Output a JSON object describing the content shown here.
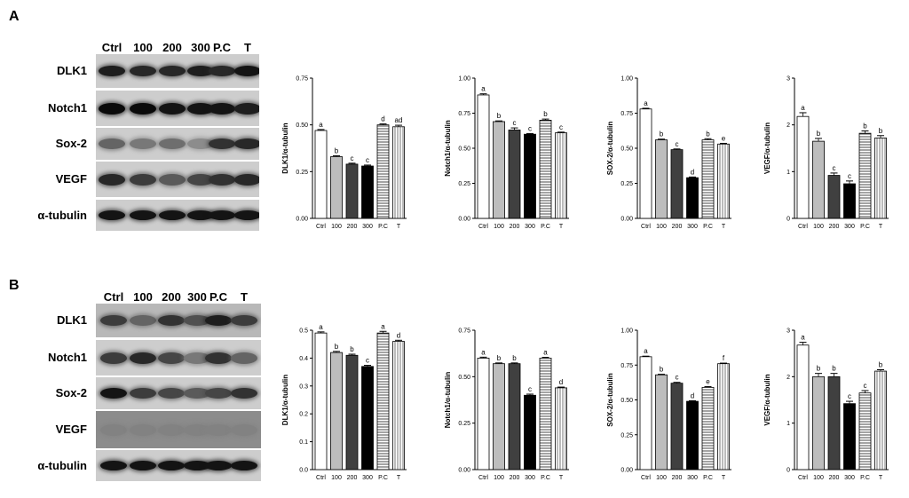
{
  "panels": [
    {
      "letter": "A",
      "blot": {
        "lanes": [
          "Ctrl",
          "100",
          "200",
          "300",
          "P.C",
          "T"
        ],
        "rows": [
          {
            "label": "DLK1",
            "intensity": [
              0.85,
              0.8,
              0.8,
              0.85,
              0.8,
              0.9
            ]
          },
          {
            "label": "Notch1",
            "intensity": [
              0.95,
              0.95,
              0.9,
              0.9,
              0.9,
              0.85
            ]
          },
          {
            "label": "Sox-2",
            "intensity": [
              0.5,
              0.4,
              0.45,
              0.3,
              0.75,
              0.8
            ]
          },
          {
            "label": "VEGF",
            "intensity": [
              0.8,
              0.7,
              0.55,
              0.65,
              0.75,
              0.8
            ]
          },
          {
            "label": "α-tubulin",
            "intensity": [
              0.9,
              0.9,
              0.9,
              0.9,
              0.9,
              0.9
            ]
          }
        ]
      }
    },
    {
      "letter": "B",
      "blot": {
        "lanes": [
          "Ctrl",
          "100",
          "200",
          "300",
          "P.C",
          "T"
        ],
        "rows": [
          {
            "label": "DLK1",
            "intensity": [
              0.7,
              0.5,
              0.75,
              0.6,
              0.85,
              0.7
            ]
          },
          {
            "label": "Notch1",
            "intensity": [
              0.7,
              0.8,
              0.65,
              0.4,
              0.75,
              0.5
            ]
          },
          {
            "label": "Sox-2",
            "intensity": [
              0.9,
              0.7,
              0.65,
              0.55,
              0.65,
              0.75
            ]
          },
          {
            "label": "VEGF",
            "intensity": [
              0.35,
              0.35,
              0.35,
              0.35,
              0.35,
              0.35
            ]
          },
          {
            "label": "α-tubulin",
            "intensity": [
              0.9,
              0.9,
              0.9,
              0.9,
              0.9,
              0.9
            ]
          }
        ]
      }
    }
  ],
  "chart_data": [
    {
      "type": "bar",
      "panel": "A",
      "categories": [
        "Ctrl",
        "100",
        "200",
        "300",
        "P.C",
        "T"
      ],
      "values": [
        0.47,
        0.33,
        0.29,
        0.28,
        0.5,
        0.49
      ],
      "errors": [
        0.005,
        0.005,
        0.005,
        0.005,
        0.005,
        0.008
      ],
      "letters": [
        "a",
        "b",
        "c",
        "c",
        "d",
        "ad"
      ],
      "ylabel": "DLK1/α-tubulin",
      "ylim": [
        0,
        0.75
      ],
      "yticks": [
        "0.00",
        "0.25",
        "0.50",
        "0.75"
      ]
    },
    {
      "type": "bar",
      "panel": "A",
      "categories": [
        "Ctrl",
        "100",
        "200",
        "300",
        "P.C",
        "T"
      ],
      "values": [
        0.88,
        0.69,
        0.63,
        0.6,
        0.7,
        0.61
      ],
      "errors": [
        0.008,
        0.005,
        0.015,
        0.005,
        0.008,
        0.005
      ],
      "letters": [
        "a",
        "b",
        "c",
        "c",
        "b",
        "c"
      ],
      "ylabel": "Notch1/α-tubulin",
      "ylim": [
        0,
        1.0
      ],
      "yticks": [
        "0.00",
        "0.25",
        "0.50",
        "0.75",
        "1.00"
      ]
    },
    {
      "type": "bar",
      "panel": "A",
      "categories": [
        "Ctrl",
        "100",
        "200",
        "300",
        "P.C",
        "T"
      ],
      "values": [
        0.78,
        0.56,
        0.49,
        0.29,
        0.56,
        0.53
      ],
      "errors": [
        0.005,
        0.005,
        0.005,
        0.005,
        0.008,
        0.005
      ],
      "letters": [
        "a",
        "b",
        "c",
        "d",
        "b",
        "e"
      ],
      "ylabel": "SOX-2/α-tubulin",
      "ylim": [
        0,
        1.0
      ],
      "yticks": [
        "0.00",
        "0.25",
        "0.50",
        "0.75",
        "1.00"
      ]
    },
    {
      "type": "bar",
      "panel": "A",
      "categories": [
        "Ctrl",
        "100",
        "200",
        "300",
        "P.C",
        "T"
      ],
      "values": [
        2.18,
        1.65,
        0.92,
        0.74,
        1.82,
        1.72
      ],
      "errors": [
        0.08,
        0.06,
        0.05,
        0.06,
        0.05,
        0.05
      ],
      "letters": [
        "a",
        "b",
        "c",
        "c",
        "b",
        "b"
      ],
      "ylabel": "VEGF/α-tubulin",
      "ylim": [
        0,
        3
      ],
      "yticks": [
        "0",
        "1",
        "2",
        "3"
      ]
    },
    {
      "type": "bar",
      "panel": "B",
      "categories": [
        "Ctrl",
        "100",
        "200",
        "300",
        "P.C",
        "T"
      ],
      "values": [
        0.49,
        0.42,
        0.41,
        0.37,
        0.49,
        0.46
      ],
      "errors": [
        0.004,
        0.004,
        0.004,
        0.004,
        0.006,
        0.004
      ],
      "letters": [
        "a",
        "b",
        "b",
        "c",
        "a",
        "d"
      ],
      "ylabel": "DLK1/α-tubulin",
      "ylim": [
        0,
        0.5
      ],
      "yticks": [
        "0.0",
        "0.1",
        "0.2",
        "0.3",
        "0.4",
        "0.5"
      ]
    },
    {
      "type": "bar",
      "panel": "B",
      "categories": [
        "Ctrl",
        "100",
        "200",
        "300",
        "P.C",
        "T"
      ],
      "values": [
        0.6,
        0.57,
        0.57,
        0.4,
        0.6,
        0.44
      ],
      "errors": [
        0.005,
        0.004,
        0.004,
        0.006,
        0.004,
        0.004
      ],
      "letters": [
        "a",
        "b",
        "b",
        "c",
        "a",
        "d"
      ],
      "ylabel": "Notch1/α-tubulin",
      "ylim": [
        0,
        0.75
      ],
      "yticks": [
        "0.00",
        "0.25",
        "0.50",
        "0.75"
      ]
    },
    {
      "type": "bar",
      "panel": "B",
      "categories": [
        "Ctrl",
        "100",
        "200",
        "300",
        "P.C",
        "T"
      ],
      "values": [
        0.81,
        0.68,
        0.62,
        0.49,
        0.59,
        0.76
      ],
      "errors": [
        0.004,
        0.004,
        0.006,
        0.004,
        0.006,
        0.004
      ],
      "letters": [
        "a",
        "b",
        "c",
        "d",
        "e",
        "f"
      ],
      "ylabel": "SOX-2/α-tubulin",
      "ylim": [
        0,
        1.0
      ],
      "yticks": [
        "0.00",
        "0.25",
        "0.50",
        "0.75",
        "1.00"
      ]
    },
    {
      "type": "bar",
      "panel": "B",
      "categories": [
        "Ctrl",
        "100",
        "200",
        "300",
        "P.C",
        "T"
      ],
      "values": [
        2.68,
        2.0,
        2.0,
        1.42,
        1.65,
        2.12
      ],
      "errors": [
        0.06,
        0.07,
        0.07,
        0.05,
        0.05,
        0.03
      ],
      "letters": [
        "a",
        "b",
        "b",
        "c",
        "c",
        "b"
      ],
      "ylabel": "VEGF/α-tubulin",
      "ylim": [
        0,
        3
      ],
      "yticks": [
        "0",
        "1",
        "2",
        "3"
      ]
    }
  ]
}
